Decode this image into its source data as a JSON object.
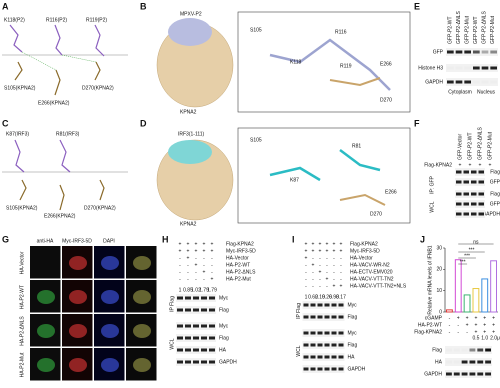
{
  "A": {
    "letter": "A",
    "labels": [
      "K118(P2)",
      "R116(P2)",
      "R119(P2)",
      "S105(KPNA2)",
      "E266(KPNA2)",
      "D270(KPNA2)"
    ]
  },
  "B": {
    "letter": "B",
    "protein": "MPXV-P2",
    "host": "KPNA2",
    "zoom": [
      "S105",
      "K118",
      "R116",
      "R119",
      "E266",
      "D270"
    ]
  },
  "C": {
    "letter": "C",
    "labels": [
      "K87(IRF3)",
      "R81(IRF3)",
      "S105(KPNA2)",
      "E266(KPNA2)",
      "D270(KPNA2)"
    ]
  },
  "D": {
    "letter": "D",
    "protein": "IRF3(1-111)",
    "host": "KPNA2",
    "zoom": [
      "S105",
      "K87",
      "R81",
      "E266",
      "D270"
    ]
  },
  "E": {
    "letter": "E",
    "lanes": [
      "GFP-P2-WT",
      "GFP-P2-ΔNLS",
      "GFP-P2-Mut",
      "GFP-P2-WT",
      "GFP-P2-ΔNLS",
      "GFP-P2-Mut"
    ],
    "rows": [
      "GFP",
      "Histone H3",
      "GAPDH"
    ],
    "groups": [
      "Cytoplasm",
      "Nucleus"
    ]
  },
  "F": {
    "letter": "F",
    "lanes": [
      "GFP-Vector",
      "GFP-P2-WT",
      "GFP-P2-ΔNLS",
      "GFP-P2-Mut"
    ],
    "treatment": "Flag-KPNA2",
    "signs": [
      "+",
      "+",
      "+",
      "+"
    ],
    "rows": [
      "Flag",
      "GFP",
      "Flag",
      "GFP",
      "GAPDH"
    ],
    "sections": [
      "IP: GFP",
      "WCL"
    ]
  },
  "G": {
    "letter": "G",
    "columns": [
      "anti-HA",
      "Myc-IRF3-5D",
      "DAPI"
    ],
    "rows": [
      "HA-Vector",
      "HA-P2-WT",
      "HA-P2-ΔNLS",
      "HA-P2-Mut"
    ]
  },
  "H": {
    "letter": "H",
    "conditions": [
      {
        "name": "Flag-KPNA2",
        "signs": [
          "+",
          "+",
          "+",
          "+",
          "+"
        ]
      },
      {
        "name": "Myc-IRF3-5D",
        "signs": [
          "+",
          "+",
          "+",
          "+",
          "+"
        ]
      },
      {
        "name": "HA-Vector",
        "signs": [
          "-",
          "+",
          "-",
          "-",
          "-"
        ]
      },
      {
        "name": "HA-P2-WT",
        "signs": [
          "-",
          "-",
          "+",
          "-",
          "-"
        ]
      },
      {
        "name": "HA-P2-ΔNLS",
        "signs": [
          "-",
          "-",
          "-",
          "+",
          "-"
        ]
      },
      {
        "name": "HA-P2-Mut",
        "signs": [
          "-",
          "-",
          "-",
          "-",
          "+"
        ]
      }
    ],
    "quant": [
      "1",
      "0.85",
      "1.02",
      "1.79",
      "1.79"
    ],
    "rows": [
      "Myc",
      "Flag",
      "Myc",
      "Flag",
      "HA",
      "GAPDH"
    ],
    "sections": [
      "IP Flag",
      "WCL"
    ]
  },
  "I": {
    "letter": "I",
    "conditions": [
      {
        "name": "Flag-KPNA2",
        "signs": [
          "+",
          "+",
          "+",
          "+",
          "+",
          "+"
        ]
      },
      {
        "name": "Myc-IRF3-5D",
        "signs": [
          "+",
          "+",
          "+",
          "+",
          "+",
          "+"
        ]
      },
      {
        "name": "HA-Vector",
        "signs": [
          "+",
          "-",
          "-",
          "-",
          "-",
          "-"
        ]
      },
      {
        "name": "HA-VACV-WR-N2",
        "signs": [
          "-",
          "+",
          "-",
          "-",
          "-",
          "-"
        ]
      },
      {
        "name": "HA-ECTV-EMV020",
        "signs": [
          "-",
          "-",
          "+",
          "-",
          "-",
          "-"
        ]
      },
      {
        "name": "HA-VACV-VTT-TN2",
        "signs": [
          "-",
          "-",
          "-",
          "+",
          "-",
          "-"
        ]
      },
      {
        "name": "HA-VACV-VTT-TN2+NLS",
        "signs": [
          "-",
          "-",
          "-",
          "-",
          "+",
          "+"
        ]
      }
    ],
    "quant": [
      "1",
      "0.62",
      "0.19",
      "0.26",
      "0.98",
      "0.17"
    ],
    "rows": [
      "Myc",
      "Flag",
      "Myc",
      "Flag",
      "HA",
      "GAPDH"
    ],
    "sections": [
      "IP Flag",
      "WCL"
    ]
  },
  "J": {
    "letter": "J",
    "ylabel": "Relative mRNA levels of IFNB1",
    "ylim": [
      0,
      30
    ],
    "yticks": [
      0,
      10,
      20,
      30
    ],
    "values": [
      1,
      24.5,
      8,
      11,
      15.5,
      24
    ],
    "colors": [
      "#e03c3c",
      "#d24ad6",
      "#3cb371",
      "#e8c840",
      "#3c8fe0",
      "#b070e0"
    ],
    "significance": [
      "ns",
      "***",
      "***",
      "***"
    ],
    "conditions": [
      {
        "name": "cGAMP",
        "signs": [
          "-",
          "+",
          "+",
          "+",
          "+",
          "+"
        ]
      },
      {
        "name": "HA-P2-WT",
        "signs": [
          "-",
          "-",
          "+",
          "+",
          "+",
          "+"
        ]
      },
      {
        "name": "Flag-KPNA2",
        "signs": [
          "-",
          "-",
          "-",
          "+",
          "+",
          "+"
        ]
      }
    ],
    "doses": [
      "0.5",
      "1.0",
      "2.0"
    ],
    "dose_unit": "μg",
    "rows": [
      "Flag",
      "HA",
      "GAPDH"
    ]
  }
}
